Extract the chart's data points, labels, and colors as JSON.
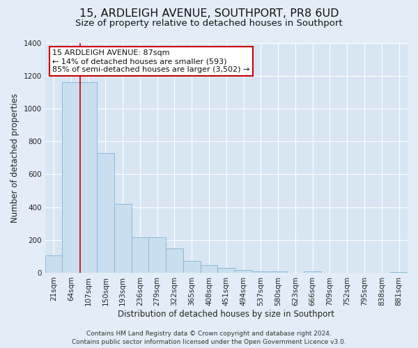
{
  "title": "15, ARDLEIGH AVENUE, SOUTHPORT, PR8 6UD",
  "subtitle": "Size of property relative to detached houses in Southport",
  "xlabel": "Distribution of detached houses by size in Southport",
  "ylabel": "Number of detached properties",
  "bar_labels": [
    "21sqm",
    "64sqm",
    "107sqm",
    "150sqm",
    "193sqm",
    "236sqm",
    "279sqm",
    "322sqm",
    "365sqm",
    "408sqm",
    "451sqm",
    "494sqm",
    "537sqm",
    "580sqm",
    "623sqm",
    "666sqm",
    "709sqm",
    "752sqm",
    "795sqm",
    "838sqm",
    "881sqm"
  ],
  "bar_values": [
    105,
    1160,
    1160,
    730,
    420,
    215,
    215,
    148,
    70,
    47,
    30,
    18,
    10,
    10,
    0,
    9,
    0,
    0,
    0,
    0,
    5
  ],
  "bar_color": "#c9dff0",
  "bar_edge_color": "#8ab8d8",
  "ylim": [
    0,
    1400
  ],
  "yticks": [
    0,
    200,
    400,
    600,
    800,
    1000,
    1200,
    1400
  ],
  "annotation_title": "15 ARDLEIGH AVENUE: 87sqm",
  "annotation_line1": "← 14% of detached houses are smaller (593)",
  "annotation_line2": "85% of semi-detached houses are larger (3,502) →",
  "annotation_box_color": "#ffffff",
  "annotation_box_edgecolor": "#cc0000",
  "footer_line1": "Contains HM Land Registry data © Crown copyright and database right 2024.",
  "footer_line2": "Contains public sector information licensed under the Open Government Licence v3.0.",
  "background_color": "#e4edf7",
  "plot_background": "#d8e6f4",
  "grid_color": "#ffffff",
  "vline_color": "#cc0000",
  "title_fontsize": 11.5,
  "subtitle_fontsize": 9.5,
  "axis_label_fontsize": 8.5,
  "tick_fontsize": 7.5,
  "annotation_fontsize": 8,
  "footer_fontsize": 6.5
}
